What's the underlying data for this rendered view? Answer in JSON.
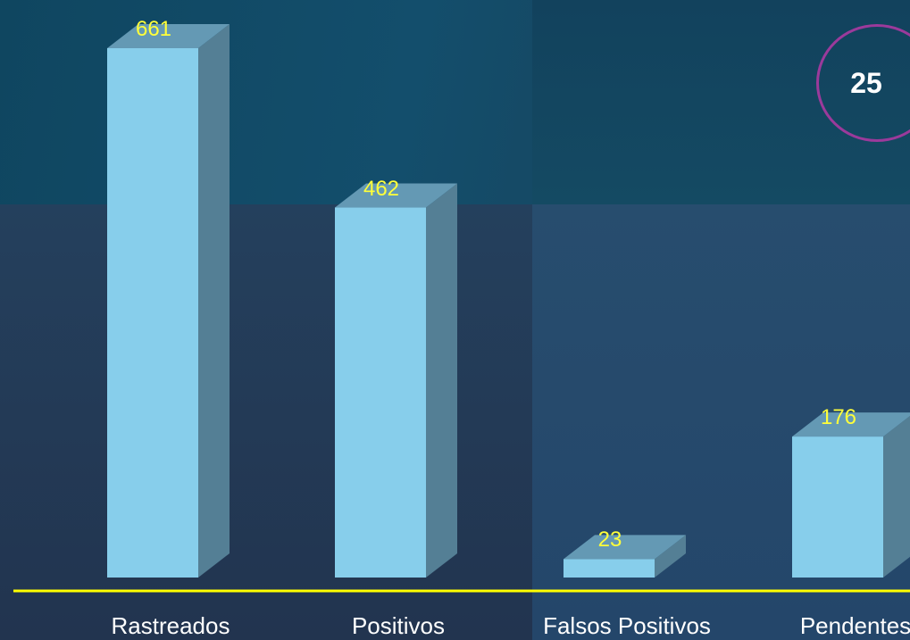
{
  "chart_data": {
    "type": "bar",
    "categories": [
      "Rastreados",
      "Positivos",
      "Falsos Positivos",
      "Pendentes"
    ],
    "values": [
      661,
      462,
      23,
      176
    ],
    "data_labels": [
      "661",
      "462",
      "23",
      "176"
    ],
    "style": "3d-bar",
    "bar_color": "#87ceeb",
    "label_color": "#ffff00",
    "baseline_color": "#ffff00"
  },
  "badge": {
    "value": "25",
    "border_color": "#9b3a9b"
  }
}
